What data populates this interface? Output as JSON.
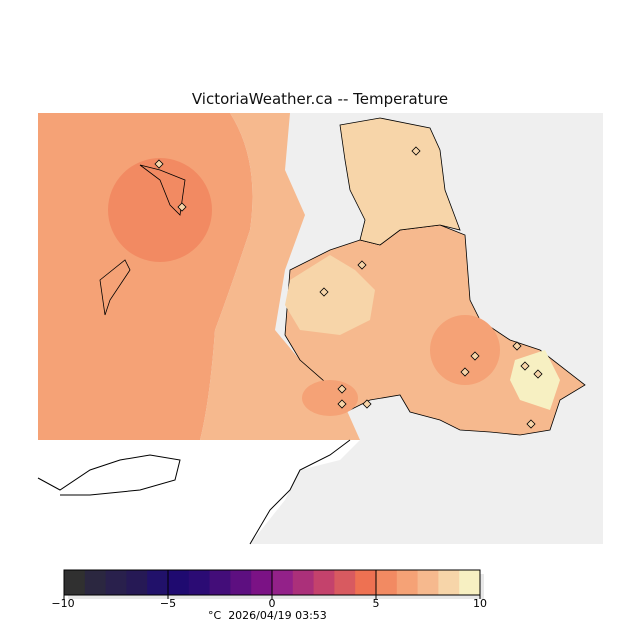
{
  "title": "VictoriaWeather.ca -- Temperature",
  "colorbar": {
    "ticks": [
      "−10",
      "−5",
      "0",
      "5",
      "10"
    ],
    "min": -10,
    "max": 10,
    "colors": [
      "#303030",
      "#2b2740",
      "#29204c",
      "#261955",
      "#21116a",
      "#1f0a70",
      "#2b0b74",
      "#430d79",
      "#5d0f80",
      "#7b1285",
      "#932189",
      "#ab307a",
      "#c4426c",
      "#d85a60",
      "#ee7152",
      "#f28a62",
      "#f5a276",
      "#f6b98e",
      "#f7d5a9",
      "#f7f0c2"
    ],
    "unit": "°C",
    "timestamp": "2026/04/19 03:53"
  }
}
